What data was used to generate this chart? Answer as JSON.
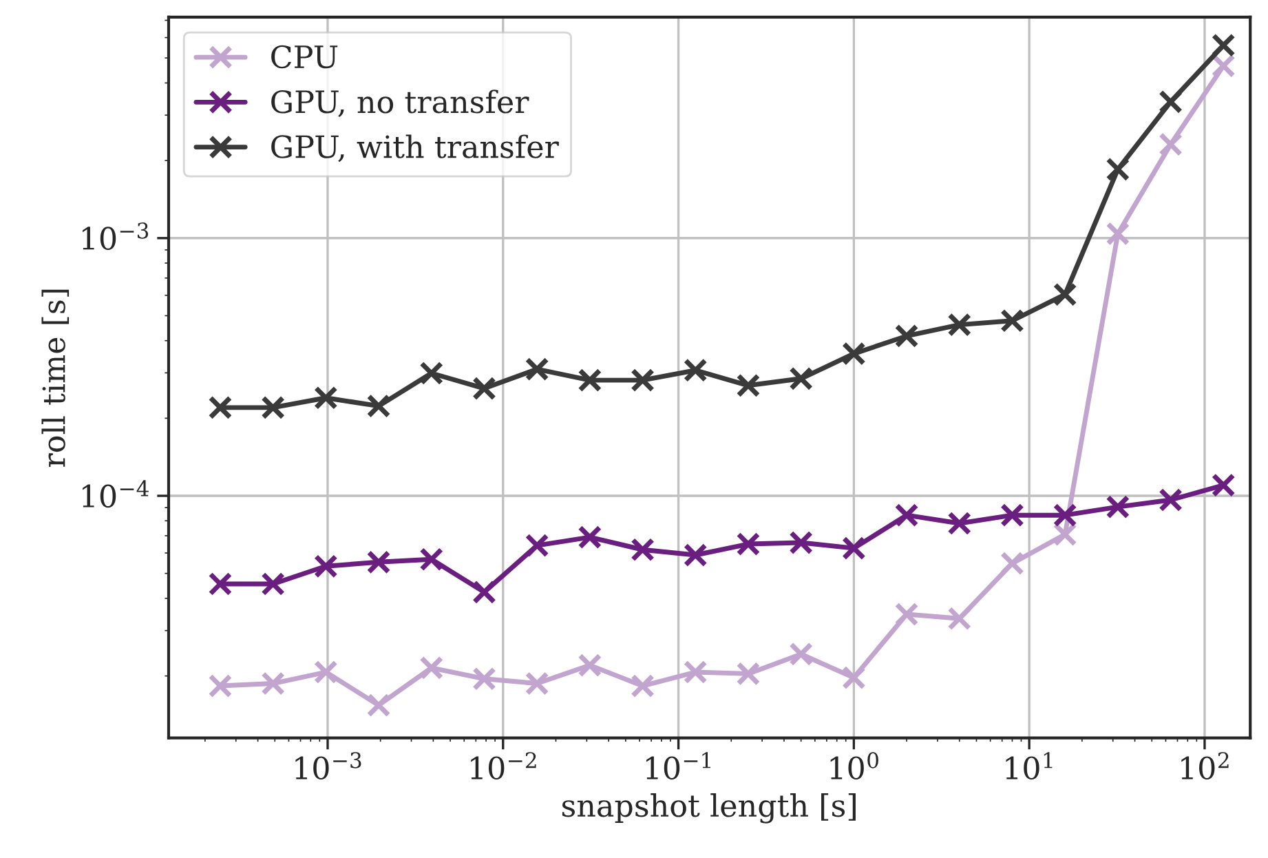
{
  "chart_data": {
    "type": "line",
    "xlabel": "snapshot length [s]",
    "ylabel": "roll time [s]",
    "log": "xy",
    "grid": true,
    "legend": "top left",
    "marker": "cross",
    "line_style": "solid",
    "x": [
      0.000244140625,
      0.00048828125,
      0.0009765625,
      0.001953125,
      0.00390625,
      0.0078125,
      0.015625,
      0.03125,
      0.0625,
      0.125,
      0.25,
      0.5,
      1,
      2,
      4,
      8,
      16,
      32,
      64,
      128
    ],
    "xlim": [
      0.000124,
      182
    ],
    "ylim": [
      1.15e-05,
      0.0072
    ],
    "xticks": [
      {
        "value": 0.001,
        "label": "10$^{−3}$"
      },
      {
        "value": 0.01,
        "label": "10$^{−2}$"
      },
      {
        "value": 0.1,
        "label": "10$^{−1}$"
      },
      {
        "value": 1,
        "label": "10$^{0}$"
      },
      {
        "value": 10,
        "label": "10$^{1}$"
      },
      {
        "value": 100,
        "label": "10$^{2}$"
      }
    ],
    "yticks": [
      {
        "value": 0.0001,
        "label": "10$^{−4}$"
      },
      {
        "value": 0.001,
        "label": "10$^{−3}$"
      }
    ],
    "series": [
      {
        "name": "CPU",
        "color": "#c2a5cf",
        "values": [
          1.83e-05,
          1.87e-05,
          2.07e-05,
          1.54e-05,
          2.15e-05,
          1.95e-05,
          1.87e-05,
          2.2e-05,
          1.83e-05,
          2.07e-05,
          2.04e-05,
          2.43e-05,
          1.97e-05,
          3.47e-05,
          3.34e-05,
          5.47e-05,
          7.08e-05,
          0.00104,
          0.00231,
          0.00466
        ]
      },
      {
        "name": "GPU, no transfer",
        "color": "#6a1f80",
        "values": [
          4.55e-05,
          4.55e-05,
          5.33e-05,
          5.53e-05,
          5.67e-05,
          4.23e-05,
          6.42e-05,
          6.91e-05,
          6.18e-05,
          5.89e-05,
          6.5e-05,
          6.58e-05,
          6.26e-05,
          8.41e-05,
          7.82e-05,
          8.41e-05,
          8.41e-05,
          9.06e-05,
          9.64e-05,
          0.00011
        ]
      },
      {
        "name": "GPU, with transfer",
        "color": "#3a3a3a",
        "values": [
          0.00022,
          0.00022,
          0.00024,
          0.000223,
          0.000299,
          0.000261,
          0.00031,
          0.000281,
          0.000281,
          0.000307,
          0.000268,
          0.000285,
          0.000356,
          0.000417,
          0.000461,
          0.000478,
          0.000604,
          0.00185,
          0.00338,
          0.0056
        ]
      }
    ]
  }
}
